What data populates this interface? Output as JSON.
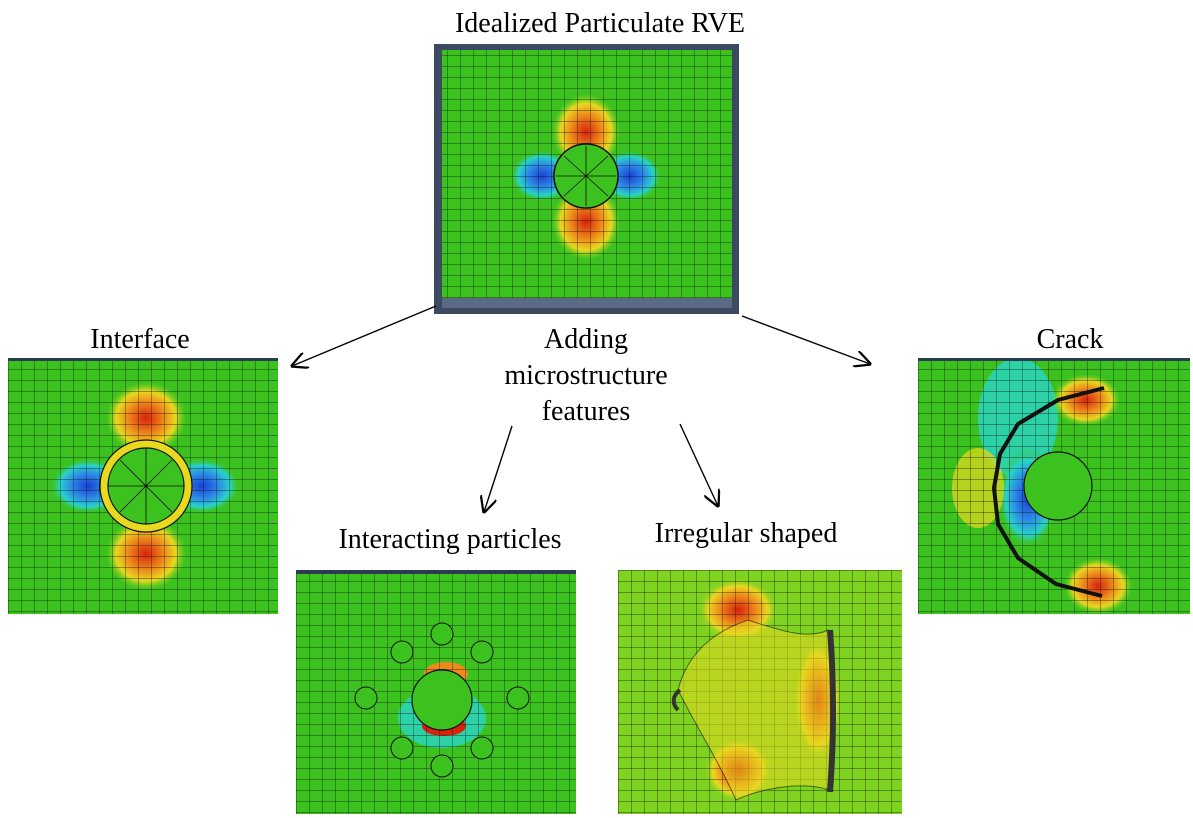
{
  "title": "Idealized Particulate RVE",
  "center_label": {
    "line1": "Adding",
    "line2": "microstructure",
    "line3": "features"
  },
  "panels": {
    "main": {
      "label": "Idealized Particulate RVE"
    },
    "interface": {
      "label": "Interface"
    },
    "crack": {
      "label": "Crack"
    },
    "interacting": {
      "label": "Interacting particles"
    },
    "irregular": {
      "label": "Irregular shaped"
    }
  },
  "colors": {
    "green": "#3cc21e",
    "green_light": "#7ed321",
    "yellow": "#e8d820",
    "orange": "#ee8a1a",
    "red": "#d8220e",
    "cyan": "#28d4c8",
    "blue_light": "#2c8ce6",
    "blue": "#1a3fd6",
    "frame": "#3c4a60",
    "arrow": "#000000"
  }
}
